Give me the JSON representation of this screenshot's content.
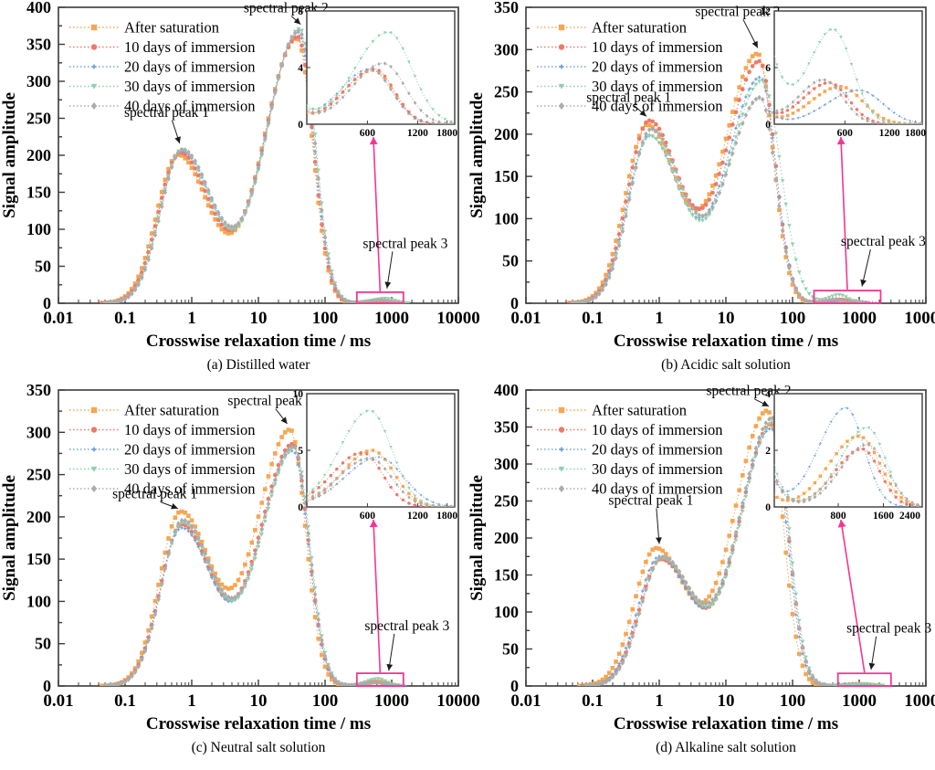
{
  "figure": {
    "y_axis_label": "Signal amplitude",
    "x_axis_label": "Crosswise relaxation time / ms",
    "x_tick_labels": [
      "0.01",
      "0.1",
      "1",
      "10",
      "100",
      "1000",
      "10000"
    ],
    "x_log_range": [
      -2,
      4
    ],
    "legend_labels": [
      "After saturation",
      "10 days of immersion",
      "20 days of immersion",
      "30 days of immersion",
      "40 days of immersion"
    ],
    "series_colors": [
      "#F7A651",
      "#ED7A68",
      "#74A3DC",
      "#8FD2AC",
      "#ACACAC"
    ],
    "marker_shapes": [
      "square",
      "circle",
      "star",
      "triangle",
      "diamond"
    ],
    "annotation_labels": {
      "peak1": "spectral peak 1",
      "peak2": "spectral peak 2",
      "peak3": "spectral peak 3"
    },
    "colors": {
      "accent_pink": "#F5368F",
      "axis": "#3a3a3a",
      "text": "#000000"
    }
  },
  "chart_data": [
    {
      "id": "a",
      "type": "line",
      "x_scale": "log",
      "caption": "(a) Distilled water",
      "ylim": [
        0,
        400
      ],
      "y_major_step": 50,
      "y_minor_step": 25,
      "series": [
        {
          "name": "After saturation",
          "marker": "square",
          "peaks_ms_amp_wl_wr": [
            [
              0.62,
              200,
              0.32,
              0.46
            ],
            [
              38,
              358,
              0.5,
              0.23
            ],
            [
              650,
              3.8,
              0.18,
              0.12
            ]
          ]
        },
        {
          "name": "10 days of immersion",
          "marker": "circle",
          "peaks_ms_amp_wl_wr": [
            [
              0.66,
              203,
              0.32,
              0.46
            ],
            [
              39,
              360,
              0.5,
              0.23
            ],
            [
              660,
              3.9,
              0.18,
              0.12
            ]
          ]
        },
        {
          "name": "20 days of immersion",
          "marker": "star",
          "peaks_ms_amp_wl_wr": [
            [
              0.7,
              205,
              0.32,
              0.46
            ],
            [
              40,
              366,
              0.5,
              0.23
            ],
            [
              620,
              3.9,
              0.18,
              0.13
            ]
          ]
        },
        {
          "name": "30 days of immersion",
          "marker": "triangle",
          "peaks_ms_amp_wl_wr": [
            [
              0.7,
              207,
              0.32,
              0.46
            ],
            [
              42,
              371,
              0.5,
              0.23
            ],
            [
              800,
              6.5,
              0.2,
              0.14
            ]
          ]
        },
        {
          "name": "40 days of immersion",
          "marker": "diamond",
          "peaks_ms_amp_wl_wr": [
            [
              0.72,
              207,
              0.32,
              0.46
            ],
            [
              41,
              368,
              0.5,
              0.23
            ],
            [
              750,
              4.3,
              0.19,
              0.13
            ]
          ]
        }
      ],
      "inset": {
        "x_log_range": [
          260,
          2000
        ],
        "x_ticks": [
          600,
          1200,
          1800
        ],
        "ylim": [
          0,
          8
        ],
        "y_ticks": [
          0,
          4,
          8
        ]
      },
      "peak3_box_ms": [
        300,
        1500
      ],
      "peak3_box_amp": 15,
      "annotations": {
        "peak1": {
          "text_at": [
            0.42,
            252
          ],
          "arrow_to": [
            0.66,
            216
          ]
        },
        "peak2": {
          "text_at": [
            26,
            393
          ],
          "arrow_to": [
            43,
            377
          ]
        },
        "peak3": {
          "text_at": [
            1600,
            75
          ],
          "arrow_to": [
            850,
            20
          ]
        }
      }
    },
    {
      "id": "b",
      "type": "line",
      "x_scale": "log",
      "caption": "(b) Acidic salt solution",
      "ylim": [
        0,
        350
      ],
      "y_major_step": 50,
      "y_minor_step": 25,
      "series": [
        {
          "name": "After saturation",
          "marker": "square",
          "peaks_ms_amp_wl_wr": [
            [
              0.65,
              210,
              0.32,
              0.46
            ],
            [
              30,
              295,
              0.5,
              0.23
            ],
            [
              560,
              4.0,
              0.2,
              0.15
            ]
          ]
        },
        {
          "name": "10 days of immersion",
          "marker": "circle",
          "peaks_ms_amp_wl_wr": [
            [
              0.7,
              215,
              0.32,
              0.46
            ],
            [
              32,
              286,
              0.5,
              0.23
            ],
            [
              470,
              4.4,
              0.18,
              0.13
            ]
          ]
        },
        {
          "name": "20 days of immersion",
          "marker": "star",
          "peaks_ms_amp_wl_wr": [
            [
              0.7,
              198,
              0.32,
              0.46
            ],
            [
              33,
              267,
              0.5,
              0.23
            ],
            [
              750,
              3.6,
              0.22,
              0.16
            ]
          ]
        },
        {
          "name": "30 days of immersion",
          "marker": "triangle",
          "peaks_ms_amp_wl_wr": [
            [
              0.72,
              197,
              0.32,
              0.46
            ],
            [
              35,
              263,
              0.5,
              0.28
            ],
            [
              500,
              10.0,
              0.16,
              0.13
            ]
          ]
        },
        {
          "name": "40 days of immersion",
          "marker": "diamond",
          "peaks_ms_amp_wl_wr": [
            [
              0.75,
              205,
              0.32,
              0.46
            ],
            [
              33,
              243,
              0.5,
              0.23
            ],
            [
              430,
              4.7,
              0.17,
              0.13
            ]
          ]
        }
      ],
      "inset": {
        "x_log_range": [
          200,
          2000
        ],
        "x_ticks": [
          600,
          1200,
          1800
        ],
        "ylim": [
          0,
          12
        ],
        "y_ticks": [
          0,
          6,
          12
        ]
      },
      "peak3_box_ms": [
        210,
        2100
      ],
      "peak3_box_amp": 15,
      "annotations": {
        "peak1": {
          "text_at": [
            0.35,
            238
          ],
          "arrow_to": [
            0.64,
            221
          ]
        },
        "peak2": {
          "text_at": [
            15,
            340
          ],
          "arrow_to": [
            30,
            302
          ]
        },
        "peak3": {
          "text_at": [
            2300,
            68
          ],
          "arrow_to": [
            1100,
            20
          ]
        }
      }
    },
    {
      "id": "c",
      "type": "line",
      "x_scale": "log",
      "caption": "(c) Neutral salt solution",
      "ylim": [
        0,
        350
      ],
      "y_major_step": 50,
      "y_minor_step": 25,
      "series": [
        {
          "name": "After saturation",
          "marker": "square",
          "peaks_ms_amp_wl_wr": [
            [
              0.68,
              205,
              0.32,
              0.46
            ],
            [
              30,
              303,
              0.5,
              0.23
            ],
            [
              640,
              5.0,
              0.18,
              0.13
            ]
          ]
        },
        {
          "name": "10 days of immersion",
          "marker": "circle",
          "peaks_ms_amp_wl_wr": [
            [
              0.7,
              190,
              0.32,
              0.46
            ],
            [
              33,
              286,
              0.5,
              0.23
            ],
            [
              560,
              4.8,
              0.18,
              0.12
            ]
          ]
        },
        {
          "name": "20 days of immersion",
          "marker": "star",
          "peaks_ms_amp_wl_wr": [
            [
              0.7,
              186,
              0.32,
              0.46
            ],
            [
              33,
              278,
              0.5,
              0.23
            ],
            [
              700,
              4.4,
              0.2,
              0.15
            ]
          ]
        },
        {
          "name": "30 days of immersion",
          "marker": "triangle",
          "peaks_ms_amp_wl_wr": [
            [
              0.73,
              192,
              0.32,
              0.46
            ],
            [
              35,
              281,
              0.5,
              0.23
            ],
            [
              620,
              8.5,
              0.18,
              0.13
            ]
          ]
        },
        {
          "name": "40 days of immersion",
          "marker": "diamond",
          "peaks_ms_amp_wl_wr": [
            [
              0.73,
              195,
              0.32,
              0.46
            ],
            [
              34,
              283,
              0.5,
              0.23
            ],
            [
              620,
              4.3,
              0.19,
              0.13
            ]
          ]
        }
      ],
      "inset": {
        "x_log_range": [
          260,
          2000
        ],
        "x_ticks": [
          600,
          1200,
          1800
        ],
        "ylim": [
          0,
          10
        ],
        "y_ticks": [
          0,
          5,
          10
        ]
      },
      "peak3_box_ms": [
        300,
        1500
      ],
      "peak3_box_amp": 15,
      "annotations": {
        "peak1": {
          "text_at": [
            0.28,
            222
          ],
          "arrow_to": [
            0.62,
            210
          ]
        },
        "peak2": {
          "text_at": [
            15,
            332
          ],
          "arrow_to": [
            27,
            310
          ]
        },
        "peak3": {
          "text_at": [
            1700,
            66
          ],
          "arrow_to": [
            900,
            18
          ]
        }
      }
    },
    {
      "id": "d",
      "type": "line",
      "x_scale": "log",
      "caption": "(d) Alkaline salt solution",
      "ylim": [
        0,
        400
      ],
      "y_major_step": 50,
      "y_minor_step": 25,
      "series": [
        {
          "name": "After saturation",
          "marker": "square",
          "peaks_ms_amp_wl_wr": [
            [
              0.88,
              185,
              0.32,
              0.46
            ],
            [
              42,
              372,
              0.5,
              0.23
            ],
            [
              1100,
              2.5,
              0.2,
              0.14
            ]
          ]
        },
        {
          "name": "10 days of immersion",
          "marker": "circle",
          "peaks_ms_amp_wl_wr": [
            [
              1.05,
              170,
              0.32,
              0.46
            ],
            [
              50,
              355,
              0.5,
              0.23
            ],
            [
              1150,
              2.05,
              0.18,
              0.12
            ]
          ]
        },
        {
          "name": "20 days of immersion",
          "marker": "star",
          "peaks_ms_amp_wl_wr": [
            [
              1.0,
              174,
              0.32,
              0.46
            ],
            [
              48,
              348,
              0.5,
              0.23
            ],
            [
              900,
              3.5,
              0.18,
              0.12
            ]
          ]
        },
        {
          "name": "30 days of immersion",
          "marker": "triangle",
          "peaks_ms_amp_wl_wr": [
            [
              1.1,
              171,
              0.32,
              0.46
            ],
            [
              52,
              356,
              0.5,
              0.23
            ],
            [
              1250,
              2.8,
              0.18,
              0.12
            ]
          ]
        },
        {
          "name": "40 days of immersion",
          "marker": "diamond",
          "peaks_ms_amp_wl_wr": [
            [
              1.1,
              173,
              0.32,
              0.46
            ],
            [
              50,
              362,
              0.5,
              0.23
            ],
            [
              1250,
              2.2,
              0.18,
              0.13
            ]
          ]
        }
      ],
      "inset": {
        "x_log_range": [
          300,
          2900
        ],
        "x_ticks": [
          800,
          1600,
          2400
        ],
        "ylim": [
          0,
          4
        ],
        "y_ticks": [
          0,
          2,
          4
        ]
      },
      "peak3_box_ms": [
        480,
        3000
      ],
      "peak3_box_amp": 17,
      "annotations": {
        "peak1": {
          "text_at": [
            0.75,
            245
          ],
          "arrow_to": [
            1.0,
            192
          ]
        },
        "peak2": {
          "text_at": [
            22,
            393
          ],
          "arrow_to": [
            44,
            378
          ]
        },
        "peak3": {
          "text_at": [
            2800,
            72
          ],
          "arrow_to": [
            1500,
            22
          ]
        }
      }
    }
  ]
}
